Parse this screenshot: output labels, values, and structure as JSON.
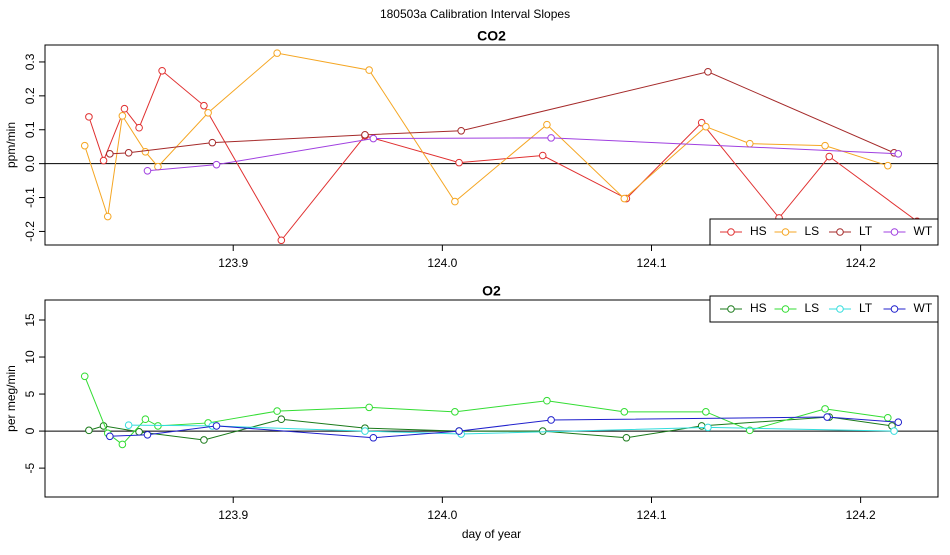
{
  "title": "180503a   Calibration Interval Slopes",
  "chart_data": [
    {
      "type": "line",
      "title": "CO2",
      "y_label": "ppm/min",
      "xlim": [
        123.81,
        124.237
      ],
      "ylim": [
        -0.24,
        0.35
      ],
      "xticks": [
        123.9,
        {
          "value": 124.0,
          "label": "124.0"
        },
        124.1,
        124.2
      ],
      "yticks": [
        -0.2,
        -0.1,
        {
          "value": 0.0,
          "label": "0.0"
        },
        0.1,
        0.2,
        0.3
      ],
      "reference_line": 0,
      "legend": "bottom-right",
      "series": [
        {
          "name": "HS",
          "color": "#e03030",
          "x": [
            123.831,
            123.838,
            123.848,
            123.855,
            123.866,
            123.886,
            123.923,
            123.963,
            124.008,
            124.048,
            124.088,
            124.124,
            124.161,
            124.185,
            124.227
          ],
          "values": [
            0.138,
            0.009,
            0.162,
            0.106,
            0.274,
            0.171,
            -0.226,
            0.082,
            0.003,
            0.024,
            -0.103,
            0.121,
            -0.16,
            0.021,
            -0.17
          ]
        },
        {
          "name": "LS",
          "color": "#f5a623",
          "x": [
            123.829,
            123.84,
            123.847,
            123.858,
            123.864,
            123.888,
            123.921,
            123.965,
            124.006,
            124.05,
            124.087,
            124.126,
            124.147,
            124.183,
            124.213
          ],
          "values": [
            0.053,
            -0.156,
            0.141,
            0.035,
            -0.009,
            0.15,
            0.326,
            0.276,
            -0.112,
            0.115,
            -0.103,
            0.109,
            0.059,
            0.053,
            -0.006
          ]
        },
        {
          "name": "LT",
          "color": "#a52a2a",
          "x": [
            123.841,
            123.85,
            123.89,
            123.963,
            124.009,
            124.127,
            124.216
          ],
          "values": [
            0.029,
            0.032,
            0.062,
            0.085,
            0.097,
            0.271,
            0.032
          ]
        },
        {
          "name": "WT",
          "color": "#a040e0",
          "x": [
            123.859,
            123.892,
            123.967,
            124.052,
            124.218
          ],
          "values": [
            -0.021,
            -0.003,
            0.074,
            0.076,
            0.029
          ]
        }
      ]
    },
    {
      "type": "line",
      "title": "O2",
      "y_label": "per meg/min",
      "x_label": "day of year",
      "xlim": [
        123.81,
        124.237
      ],
      "ylim": [
        -8.9,
        17.7
      ],
      "xticks": [
        123.9,
        {
          "value": 124.0,
          "label": "124.0"
        },
        124.1,
        124.2
      ],
      "yticks": [
        -5,
        0,
        5,
        10,
        15
      ],
      "reference_line": 0,
      "legend": "top-right",
      "series": [
        {
          "name": "HS",
          "color": "#1a7a1a",
          "x": [
            123.831,
            123.838,
            123.855,
            123.886,
            123.923,
            123.963,
            124.008,
            124.048,
            124.088,
            124.124,
            124.185,
            124.215
          ],
          "values": [
            0.1,
            0.7,
            -0.1,
            -1.2,
            1.6,
            0.4,
            0,
            0,
            -0.9,
            0.7,
            1.9,
            0.7
          ]
        },
        {
          "name": "LS",
          "color": "#33dd33",
          "x": [
            123.829,
            123.84,
            123.847,
            123.858,
            123.864,
            123.888,
            123.921,
            123.965,
            124.006,
            124.05,
            124.087,
            124.126,
            124.147,
            124.183,
            124.213
          ],
          "values": [
            7.4,
            -0.3,
            -1.8,
            1.6,
            0.7,
            1.1,
            2.7,
            3.2,
            2.6,
            4.1,
            2.6,
            2.6,
            0.1,
            3.0,
            1.8
          ]
        },
        {
          "name": "LT",
          "color": "#33dddd",
          "x": [
            123.85,
            123.89,
            123.963,
            124.009,
            124.127,
            124.216
          ],
          "values": [
            0.8,
            0.7,
            0,
            -0.4,
            0.5,
            0
          ]
        },
        {
          "name": "WT",
          "color": "#2020cc",
          "x": [
            123.841,
            123.859,
            123.892,
            123.967,
            124.008,
            124.052,
            124.184,
            124.218
          ],
          "values": [
            -0.7,
            -0.5,
            0.7,
            -0.9,
            0,
            1.5,
            1.9,
            1.2
          ]
        }
      ]
    }
  ]
}
